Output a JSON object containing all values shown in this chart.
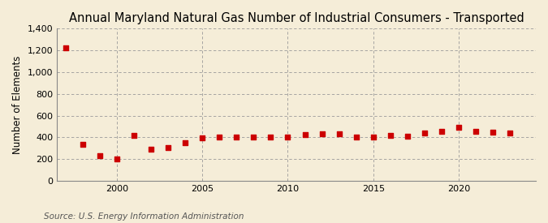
{
  "title": "Annual Maryland Natural Gas Number of Industrial Consumers - Transported",
  "ylabel": "Number of Elements",
  "source": "Source: U.S. Energy Information Administration",
  "background_color": "#f5edd8",
  "plot_background_color": "#f5edd8",
  "marker_color": "#cc0000",
  "grid_color": "#999999",
  "years": [
    1997,
    1998,
    1999,
    2000,
    2001,
    2002,
    2003,
    2004,
    2005,
    2006,
    2007,
    2008,
    2009,
    2010,
    2011,
    2012,
    2013,
    2014,
    2015,
    2016,
    2017,
    2018,
    2019,
    2020,
    2021,
    2022,
    2023
  ],
  "values": [
    1220,
    340,
    230,
    200,
    415,
    295,
    310,
    350,
    395,
    400,
    400,
    400,
    400,
    405,
    425,
    435,
    430,
    400,
    405,
    415,
    410,
    440,
    455,
    495,
    455,
    445,
    440
  ],
  "ylim": [
    0,
    1400
  ],
  "yticks": [
    0,
    200,
    400,
    600,
    800,
    1000,
    1200,
    1400
  ],
  "xlim_start": 1996.5,
  "xlim_end": 2024.5,
  "xticks": [
    2000,
    2005,
    2010,
    2015,
    2020
  ],
  "title_fontsize": 10.5,
  "label_fontsize": 8.5,
  "tick_fontsize": 8,
  "source_fontsize": 7.5
}
